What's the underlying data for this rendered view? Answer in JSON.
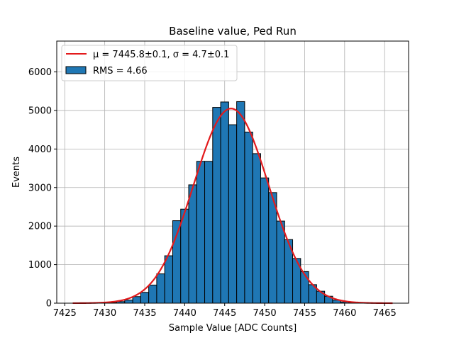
{
  "chart_data": {
    "type": "bar",
    "title": "Baseline value, Ped Run",
    "xlabel": "Sample Value [ADC Counts]",
    "ylabel": "Events",
    "xlim": [
      7424,
      7468
    ],
    "ylim": [
      0,
      6800
    ],
    "xticks": [
      7425,
      7430,
      7435,
      7440,
      7445,
      7450,
      7455,
      7460,
      7465
    ],
    "yticks": [
      0,
      1000,
      2000,
      3000,
      4000,
      5000,
      6000
    ],
    "grid": true,
    "legend_position": "top-left",
    "bin_width": 1,
    "bin_edges_start": 7429.5,
    "bins": [
      {
        "x": 7430,
        "value": 5
      },
      {
        "x": 7431,
        "value": 15
      },
      {
        "x": 7432,
        "value": 40
      },
      {
        "x": 7433,
        "value": 80
      },
      {
        "x": 7434,
        "value": 170
      },
      {
        "x": 7435,
        "value": 280
      },
      {
        "x": 7436,
        "value": 470
      },
      {
        "x": 7437,
        "value": 760
      },
      {
        "x": 7438,
        "value": 1230
      },
      {
        "x": 7439,
        "value": 2140
      },
      {
        "x": 7440,
        "value": 2440
      },
      {
        "x": 7441,
        "value": 3070
      },
      {
        "x": 7442,
        "value": 3680
      },
      {
        "x": 7443,
        "value": 3680
      },
      {
        "x": 7444,
        "value": 5080
      },
      {
        "x": 7445,
        "value": 5220
      },
      {
        "x": 7446,
        "value": 4630
      },
      {
        "x": 7447,
        "value": 5230
      },
      {
        "x": 7448,
        "value": 4440
      },
      {
        "x": 7449,
        "value": 3880
      },
      {
        "x": 7450,
        "value": 3250
      },
      {
        "x": 7451,
        "value": 2870
      },
      {
        "x": 7452,
        "value": 2130
      },
      {
        "x": 7453,
        "value": 1650
      },
      {
        "x": 7454,
        "value": 1160
      },
      {
        "x": 7455,
        "value": 820
      },
      {
        "x": 7456,
        "value": 480
      },
      {
        "x": 7457,
        "value": 310
      },
      {
        "x": 7458,
        "value": 180
      },
      {
        "x": 7459,
        "value": 80
      },
      {
        "x": 7460,
        "value": 30
      },
      {
        "x": 7461,
        "value": 10
      }
    ],
    "fit": {
      "type": "gaussian",
      "mu": 7445.8,
      "sigma": 4.7,
      "amplitude": 5050,
      "x_range": [
        7426,
        7466
      ]
    },
    "legend": [
      {
        "label": "$\\mu = 7445.8 \\pm 0.1, \\sigma = 4.7 \\pm 0.1$",
        "display": "μ = 7445.8±0.1, σ = 4.7±0.1",
        "kind": "line",
        "color": "#e31a1c"
      },
      {
        "label": "RMS = 4.66",
        "display": "RMS = 4.66",
        "kind": "patch",
        "color": "#1f77b4"
      }
    ],
    "colors": {
      "bar_fill": "#1f77b4",
      "bar_edge": "#000000",
      "fit_line": "#e31a1c",
      "grid": "#b0b0b0"
    }
  }
}
